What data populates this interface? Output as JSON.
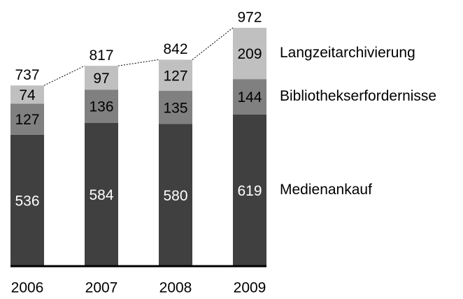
{
  "chart_data": {
    "type": "stacked_bar",
    "categories": [
      "2006",
      "2007",
      "2008",
      "2009"
    ],
    "series": [
      {
        "name": "Medienankauf",
        "color": "#404040",
        "values": [
          536,
          584,
          580,
          619
        ]
      },
      {
        "name": "Bibliothekserfordernisse",
        "color": "#808080",
        "values": [
          127,
          136,
          135,
          144
        ]
      },
      {
        "name": "Langzeitarchivierung",
        "color": "#c0c0c0",
        "values": [
          74,
          97,
          127,
          209
        ]
      }
    ],
    "totals": [
      737,
      817,
      842,
      972
    ],
    "ylim": [
      0,
      1000
    ]
  }
}
